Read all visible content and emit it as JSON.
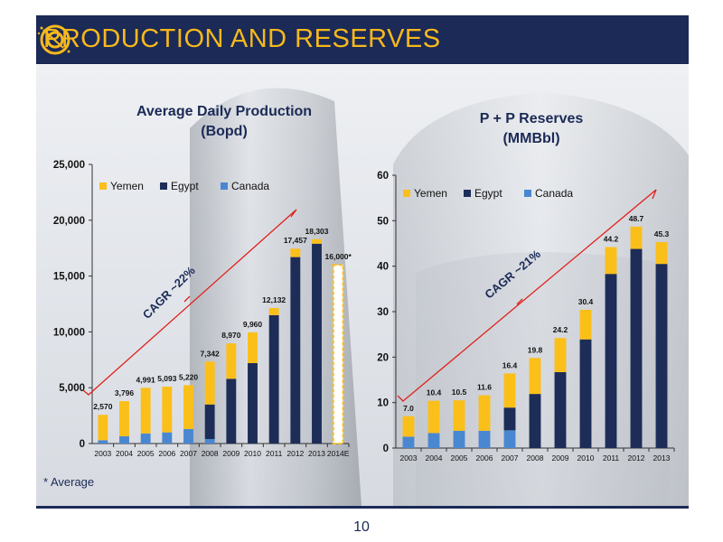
{
  "header": {
    "title": "PRODUCTION AND RESERVES"
  },
  "footnote": "* Average",
  "page_number": "10",
  "colors": {
    "header_bg": "#1b2a56",
    "title": "#f7b81c",
    "yemen": "#fbbf1a",
    "egypt": "#1d2d57",
    "canada": "#4a87d1",
    "cagr": "#e0201b"
  },
  "chart_data": [
    {
      "type": "bar",
      "title": "Average Daily Production",
      "subtitle": "(Bopd)",
      "categories": [
        "2003",
        "2004",
        "2005",
        "2006",
        "2007",
        "2008",
        "2009",
        "2010",
        "2011",
        "2012",
        "2013",
        "2014E"
      ],
      "series": [
        {
          "name": "Yemen",
          "values": [
            2270,
            3146,
            4091,
            4093,
            3920,
            3842,
            3170,
            2760,
            632,
            757,
            403,
            0
          ]
        },
        {
          "name": "Egypt",
          "values": [
            0,
            0,
            0,
            0,
            0,
            3100,
            5800,
            7200,
            11500,
            16700,
            17900,
            0
          ]
        },
        {
          "name": "Canada",
          "values": [
            300,
            650,
            900,
            1000,
            1300,
            400,
            0,
            0,
            0,
            0,
            0,
            0
          ]
        }
      ],
      "totals": [
        "2,570",
        "3,796",
        "4,991",
        "5,093",
        "5,220",
        "7,342",
        "8,970",
        "9,960",
        "12,132",
        "17,457",
        "18,303",
        "16,000*"
      ],
      "average_bar": {
        "category": "2014E",
        "value": 16000
      },
      "ylim": [
        0,
        25000
      ],
      "yticks": [
        "0",
        "5,000",
        "10,000",
        "15,000",
        "20,000",
        "25,000"
      ],
      "legend": [
        "Yemen",
        "Egypt",
        "Canada"
      ],
      "annotation": "CAGR ~22%"
    },
    {
      "type": "bar",
      "title": "P + P Reserves",
      "subtitle": "(MMBbl)",
      "categories": [
        "2003",
        "2004",
        "2005",
        "2006",
        "2007",
        "2008",
        "2009",
        "2010",
        "2011",
        "2012",
        "2013"
      ],
      "series": [
        {
          "name": "Yemen",
          "values": [
            4.5,
            7.1,
            6.7,
            7.8,
            7.5,
            7.9,
            7.5,
            6.5,
            5.9,
            4.9,
            4.8
          ]
        },
        {
          "name": "Egypt",
          "values": [
            0,
            0,
            0,
            0,
            5.0,
            11.9,
            16.7,
            23.9,
            38.3,
            43.8,
            40.5
          ]
        },
        {
          "name": "Canada",
          "values": [
            2.5,
            3.3,
            3.8,
            3.8,
            3.9,
            0,
            0,
            0,
            0,
            0,
            0
          ]
        }
      ],
      "totals": [
        "7.0",
        "10.4",
        "10.5",
        "11.6",
        "16.4",
        "19.8",
        "24.2",
        "30.4",
        "44.2",
        "48.7",
        "45.3"
      ],
      "ylim": [
        0,
        60
      ],
      "yticks": [
        "0",
        "10",
        "20",
        "30",
        "40",
        "50",
        "60"
      ],
      "legend": [
        "Yemen",
        "Egypt",
        "Canada"
      ],
      "annotation": "CAGR ~21%"
    }
  ]
}
